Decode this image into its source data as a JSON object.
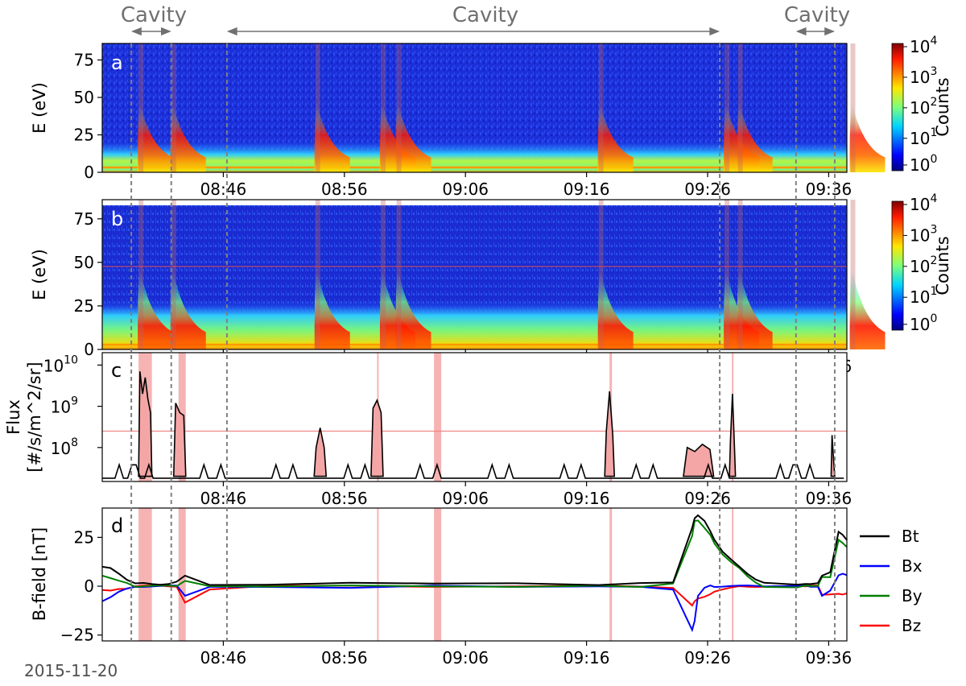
{
  "date_label": "2015-11-20",
  "cavity_labels": [
    "Cavity",
    "Cavity",
    "Cavity"
  ],
  "time_ticks": [
    "08:46",
    "08:56",
    "09:06",
    "09:16",
    "09:26",
    "09:36"
  ],
  "colorbar": {
    "label": "Counts",
    "ticks": [
      {
        "base": "10",
        "exp": "4"
      },
      {
        "base": "10",
        "exp": "3"
      },
      {
        "base": "10",
        "exp": "2"
      },
      {
        "base": "10",
        "exp": "1"
      },
      {
        "base": "10",
        "exp": "0"
      }
    ],
    "colormap": "jet"
  },
  "chart_data": [
    {
      "panel": "a",
      "type": "heatmap",
      "ylabel": "E (eV)",
      "yticks": [
        "0",
        "25",
        "50",
        "75"
      ],
      "ylim": [
        0,
        86
      ],
      "xlim": [
        "08:36",
        "09:37"
      ],
      "zscale": "log",
      "bursts_min": [
        39.2,
        41.9,
        53.8,
        59.2,
        60.5,
        77.2,
        87.6,
        88.7,
        98.0
      ]
    },
    {
      "panel": "b",
      "type": "heatmap",
      "ylabel": "E (eV)",
      "yticks": [
        "0",
        "25",
        "50",
        "75"
      ],
      "ylim": [
        0,
        86
      ],
      "xlim": [
        "08:36",
        "09:37"
      ],
      "zscale": "log",
      "reference_line_eV": 40,
      "bursts_min": [
        39.2,
        41.9,
        53.8,
        59.2,
        60.5,
        77.2,
        87.6,
        88.7,
        98.0
      ]
    },
    {
      "panel": "c",
      "type": "line",
      "ylabel": "Flux\n[#/s/m^2/sr]",
      "ylabel_lines": [
        "Flux",
        "[#/s/m^2/sr]"
      ],
      "yscale": "log",
      "yticks": [
        {
          "base": "10",
          "exp": "10"
        },
        {
          "base": "10",
          "exp": "9"
        },
        {
          "base": "10",
          "exp": "8"
        }
      ],
      "ylim": [
        15000000.0,
        20000000000.0
      ],
      "threshold": 250000000.0,
      "x_minutes_after_0836": [
        0,
        3,
        3.4,
        4.5,
        5,
        6.4,
        6.9,
        7.2,
        7.6,
        8.0,
        8.5,
        9.0,
        9.5,
        9.8,
        10.2,
        14.3,
        14.5,
        14.8,
        15.0,
        15.3,
        15.8,
        16.5,
        18,
        25,
        26.5,
        27.3,
        27.8,
        28.5,
        29.2,
        30,
        34,
        37.2,
        38.0,
        38.6,
        39.3,
        40.0,
        40.8,
        42,
        55,
        60.6,
        61.2,
        61.6,
        62.2,
        62.8,
        63.5,
        64.3,
        65,
        66.5,
        68,
        69,
        70,
        71,
        72,
        73,
        74,
        75,
        75.5,
        76.2,
        76.6,
        77.1,
        78.0,
        79,
        84,
        87.5,
        88.0,
        88.4,
        88.8,
        90,
        96,
        97.7,
        97.9,
        98.4
      ],
      "flux": [
        20000000.0,
        20000000.0,
        30000000.0,
        20000000.0,
        20000000.0,
        20000000.0,
        30000000.0,
        700000000.0,
        7000000000.0,
        2000000000.0,
        5000000000.0,
        1500000000.0,
        700000000.0,
        40000000.0,
        20000000.0,
        20000000.0,
        30000000.0,
        1200000000.0,
        700000000.0,
        600000000.0,
        20000000.0,
        20000000.0,
        20000000.0,
        20000000.0,
        20000000.0,
        30000000.0,
        100000000.0,
        300000000.0,
        100000000.0,
        20000000.0,
        20000000.0,
        20000000.0,
        100000000.0,
        900000000.0,
        1400000000.0,
        700000000.0,
        20000000.0,
        20000000.0,
        20000000.0,
        20000000.0,
        30000000.0,
        250000000.0,
        2300000000.0,
        200000000.0,
        20000000.0,
        20000000.0,
        20000000.0,
        30000000.0,
        30000000.0,
        50000000.0,
        100000000.0,
        80000000.0,
        120000000.0,
        90000000.0,
        30000000.0,
        20000000.0,
        30000000.0,
        150000000.0,
        2000000000.0,
        100000000.0,
        20000000.0,
        20000000.0,
        20000000.0,
        20000000.0,
        30000000.0,
        200000000.0,
        40000000.0,
        20000000.0,
        20000000.0,
        20000000.0,
        20000000.0,
        20000000.0
      ]
    },
    {
      "panel": "d",
      "type": "line",
      "ylabel": "B-field [nT]",
      "yticks": [
        "25",
        "0",
        "−25"
      ],
      "ylim": [
        -28,
        40
      ],
      "series": [
        {
          "name": "Bt",
          "color": "#000000",
          "x": [
            0,
            1,
            2,
            3,
            4,
            5,
            6,
            7,
            8,
            9,
            10,
            13,
            20,
            30,
            40,
            50,
            60,
            65,
            69,
            71.3,
            71.6,
            72,
            72.8,
            73.5,
            74,
            75,
            76,
            77,
            78,
            79,
            80,
            84,
            85,
            85.6,
            86.5,
            87,
            88,
            89,
            89.5,
            90
          ],
          "y": [
            10,
            9,
            6,
            3,
            1.5,
            2,
            1.5,
            1,
            1,
            2,
            5,
            1,
            1,
            2,
            1,
            1.5,
            1,
            1.5,
            2,
            30,
            35,
            36,
            33,
            28,
            24,
            18,
            14,
            10,
            6,
            3,
            1.5,
            1,
            1,
            1.5,
            2,
            5,
            7,
            28,
            26,
            24
          ]
        },
        {
          "name": "Bx",
          "color": "#0000ff",
          "x": [
            0,
            1,
            2,
            3,
            4,
            5,
            6,
            7,
            8,
            9,
            10,
            13,
            20,
            30,
            40,
            50,
            60,
            65,
            69,
            71.3,
            71.6,
            72,
            72.8,
            73.5,
            74,
            75,
            76,
            77,
            78,
            79,
            80,
            84,
            85,
            85.6,
            86.5,
            87,
            88,
            89,
            89.5,
            90
          ],
          "y": [
            -8,
            -6,
            -3,
            -1,
            0,
            0,
            0,
            0,
            0,
            0,
            -5,
            0,
            0,
            -1,
            0,
            0,
            0,
            0,
            -2,
            -22,
            -18,
            -5,
            -1,
            0,
            0,
            0,
            0,
            0,
            0,
            0,
            0,
            0,
            0,
            0,
            0,
            -5,
            -2,
            6,
            6,
            6
          ]
        },
        {
          "name": "By",
          "color": "#008000",
          "x": [
            0,
            1,
            2,
            3,
            4,
            5,
            6,
            7,
            8,
            9,
            10,
            13,
            20,
            30,
            40,
            50,
            60,
            65,
            69,
            71.3,
            71.6,
            72,
            72.8,
            73.5,
            74,
            75,
            76,
            77,
            78,
            79,
            80,
            84,
            85,
            85.6,
            86.5,
            87,
            88,
            89,
            89.5,
            90
          ],
          "y": [
            5,
            4,
            3,
            2,
            0,
            0,
            0,
            0,
            0,
            0,
            3,
            0,
            0,
            0,
            0,
            0,
            0,
            0,
            1,
            26,
            33,
            34,
            30,
            26,
            22,
            16,
            12,
            9,
            5,
            2,
            0,
            -1,
            0,
            0,
            0,
            5,
            5,
            24,
            22,
            20
          ]
        },
        {
          "name": "Bz",
          "color": "#ff0000",
          "x": [
            0,
            1,
            2,
            3,
            4,
            5,
            6,
            7,
            8,
            9,
            10,
            13,
            20,
            30,
            40,
            50,
            60,
            65,
            69,
            71.3,
            71.6,
            72,
            72.8,
            73.5,
            74,
            75,
            76,
            77,
            78,
            79,
            80,
            84,
            85,
            85.6,
            86.5,
            87,
            88,
            89,
            89.5,
            90
          ],
          "y": [
            -2,
            -2,
            -1,
            -1,
            0,
            0,
            0,
            0,
            0,
            0,
            -8,
            -2,
            0,
            0,
            0,
            0,
            0,
            0,
            -1,
            -10,
            -8,
            -6,
            -5,
            -4,
            -3,
            -2,
            -1,
            0,
            0,
            0,
            0,
            0,
            0,
            0,
            0,
            -4,
            -4,
            -4,
            -4,
            -4
          ]
        }
      ]
    }
  ]
}
